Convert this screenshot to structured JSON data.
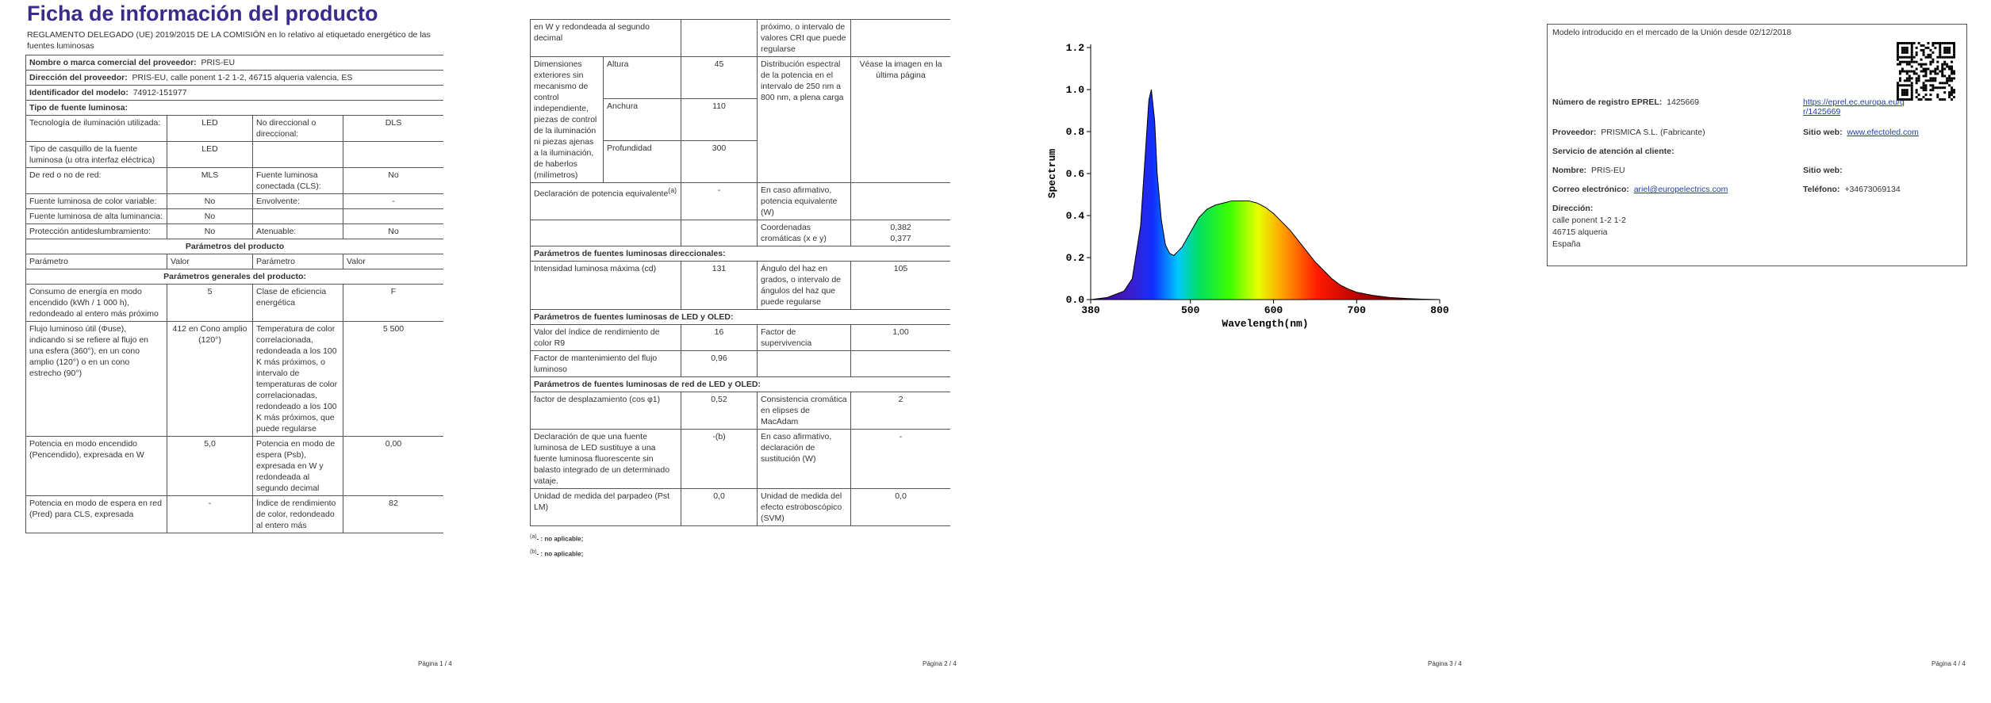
{
  "pages": [
    {
      "title": "Ficha de información del producto",
      "regulation": "REGLAMENTO DELEGADO (UE) 2019/2015 DE LA COMISIÓN en lo relativo al etiquetado energético de las fuentes luminosas",
      "supplier": [
        {
          "label": "Nombre o marca comercial del proveedor:",
          "value": "PRIS-EU"
        },
        {
          "label": "Dirección del proveedor:",
          "value": "PRIS-EU, calle ponent 1-2 1-2, 46715 alqueria valencia, ES"
        },
        {
          "label": "Identificador del modelo:",
          "value": "74912-151977"
        }
      ],
      "source_type": "Tipo de fuente luminosa:",
      "source_rows": [
        [
          "Tecnología de iluminación utilizada:",
          "LED",
          "No direccional o direccional:",
          "DLS"
        ],
        [
          "Tipo de casquillo de la fuente luminosa (u otra interfaz eléctrica)",
          "LED"
        ],
        [
          "De red o no de red:",
          "MLS",
          "Fuente luminosa conectada (CLS):",
          "No"
        ],
        [
          "Fuente luminosa de color variable:",
          "No",
          "Envolvente:",
          "-"
        ],
        [
          "Fuente luminosa de alta luminancia:",
          "No"
        ],
        [
          "Protección antideslumbramiento:",
          "No",
          "Atenuable:",
          "No"
        ]
      ],
      "product_params": "Parámetros del producto",
      "columns": [
        "Parámetro",
        "Valor",
        "Parámetro",
        "Valor"
      ],
      "general": "Parámetros generales del producto:",
      "param_rows": [
        [
          "Consumo de energía en modo encendido (kWh / 1 000 h), redondeado al entero más próximo",
          "5",
          "Clase de eficiencia energética",
          "F"
        ],
        [
          "Flujo luminoso útil (Φuse), indicando si se refiere al flujo en una esfera (360°), en un cono amplio (120°) o en un cono estrecho (90°)",
          "412 en Cono amplio (120°)",
          "Temperatura de color correlacionada, redondeada a los 100 K más próximos, o intervalo de temperaturas de color correlacionadas, redondeado a los 100 K más próximos, que puede regularse",
          "5 500"
        ],
        [
          "Potencia en modo encendido (Pencendido), expresada en W",
          "5,0",
          "Potencia en modo de espera (Psb), expresada en W y redondeada al segundo decimal",
          "0,00"
        ],
        [
          "Potencia en modo de espera en red (Pred) para CLS, expresada",
          "-",
          "Índice de rendimiento de color, redondeado al entero más",
          "82"
        ]
      ],
      "footer": "Página 1 / 4"
    },
    {
      "continued": [
        "en W y redondeada al segundo decimal",
        "próximo, o intervalo de valores CRI que puede regularse"
      ],
      "dimensions": {
        "label": "Dimensiones exteriores sin mecanismo de control independiente, piezas de control de la iluminación ni piezas ajenas a la iluminación, de haberlos (milímetros)",
        "items": [
          {
            "name": "Altura",
            "value": "45"
          },
          {
            "name": "Anchura",
            "value": "110"
          },
          {
            "name": "Profundidad",
            "value": "300"
          }
        ],
        "spectrum_label": "Distribución espectral de la potencia en el intervalo de 250 nm a 800 nm, a plena carga",
        "spectrum_value": "Véase la imagen en la última página"
      },
      "equivalent": {
        "label": "Declaración de potencia equivalente",
        "note": "(a)",
        "value": "-",
        "if_yes": "En caso afirmativo, potencia equivalente (W)"
      },
      "chromaticity": {
        "label": "Coordenadas cromáticas (x e y)",
        "x": "0,382",
        "y": "0,377"
      },
      "sections": [
        {
          "heading": "Parámetros de fuentes luminosas direccionales:",
          "rows": [
            [
              "Intensidad luminosa máxima (cd)",
              "131",
              "Ángulo del haz en grados, o intervalo de ángulos del haz que puede regularse",
              "105"
            ]
          ]
        },
        {
          "heading": "Parámetros de fuentes luminosas de LED y OLED:",
          "rows": [
            [
              "Valor del índice de rendimiento de color R9",
              "16",
              "Factor de supervivencia",
              "1,00"
            ],
            [
              "Factor de mantenimiento del flujo luminoso",
              "0,96"
            ]
          ]
        },
        {
          "heading": "Parámetros de fuentes luminosas de red de LED y OLED:",
          "rows": [
            [
              "factor de desplazamiento (cos φ1)",
              "0,52",
              "Consistencia cromática en elipses de MacAdam",
              "2"
            ],
            [
              "Declaración de que una fuente luminosa de LED sustituye a una fuente luminosa fluorescente sin balasto integrado de un determinado vataje.",
              "-(b)",
              "En caso afirmativo, declaración de sustitución (W)",
              "-"
            ],
            [
              "Unidad de medida del parpadeo (Pst LM)",
              "0,0",
              "Unidad de medida del efecto estroboscópico (SVM)",
              "0,0"
            ]
          ]
        }
      ],
      "footnotes": [
        {
          "mark": "(a)",
          "text": "- : no aplicable;"
        },
        {
          "mark": "(b)",
          "text": "- : no aplicable;"
        }
      ],
      "footer": "Página 2 / 4"
    },
    {
      "chart_data": {
        "type": "area",
        "xlabel": "Wavelength(nm)",
        "ylabel": "Spectrum",
        "x": [
          380,
          400,
          420,
          430,
          440,
          445,
          450,
          453,
          457,
          460,
          465,
          470,
          475,
          480,
          490,
          500,
          510,
          520,
          530,
          540,
          550,
          560,
          570,
          580,
          590,
          600,
          610,
          620,
          630,
          640,
          650,
          660,
          670,
          680,
          690,
          700,
          720,
          740,
          760,
          780,
          800
        ],
        "values": [
          0,
          0.01,
          0.04,
          0.1,
          0.35,
          0.65,
          0.95,
          1.0,
          0.85,
          0.6,
          0.38,
          0.26,
          0.22,
          0.21,
          0.25,
          0.32,
          0.39,
          0.43,
          0.45,
          0.46,
          0.47,
          0.47,
          0.47,
          0.46,
          0.44,
          0.41,
          0.37,
          0.33,
          0.28,
          0.23,
          0.18,
          0.14,
          0.1,
          0.07,
          0.05,
          0.035,
          0.02,
          0.01,
          0.005,
          0.002,
          0
        ],
        "xlim": [
          380,
          800
        ],
        "ylim": [
          0,
          1.2
        ],
        "xticks": [
          380,
          500,
          600,
          700,
          800
        ],
        "yticks": [
          {
            "value": 0,
            "label": "0.0"
          },
          0.2,
          0.4,
          0.6,
          0.8,
          {
            "value": 1,
            "label": "1.0"
          },
          1.2
        ],
        "color": "#000000"
      },
      "footer": "Página 3 / 4"
    },
    {
      "market": "Modelo introducido en el mercado de la Unión desde 02/12/2018",
      "eprel_label": "Número de registro EPREL:",
      "eprel": "1425669",
      "eprel_url": "https://eprel.ec.europa.eu/qr/1425669",
      "supplier_label": "Proveedor:",
      "supplier": "PRISMICA S.L. (Fabricante)",
      "website_label": "Sitio web:",
      "website": "www.efectoled.com",
      "service": "Servicio de atención al cliente:",
      "name_label": "Nombre:",
      "name": "PRIS-EU",
      "service_website_label": "Sitio web:",
      "email_label": "Correo electrónico:",
      "email": "ariel@europelectrics.com",
      "phone_label": "Teléfono:",
      "phone": "+34673069134",
      "address_label": "Dirección:",
      "address": [
        "calle ponent 1-2 1-2",
        "46715 alqueria",
        "España"
      ],
      "footer": "Página 4 / 4"
    }
  ]
}
